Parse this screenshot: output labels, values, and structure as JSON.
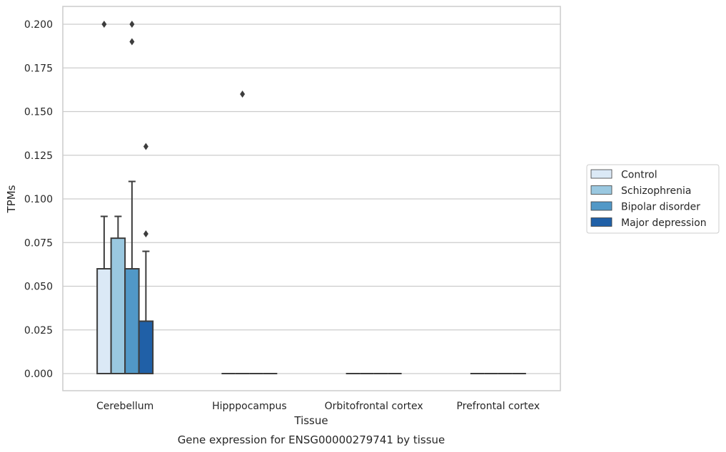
{
  "chart_data": {
    "type": "bar",
    "title": "Gene expression for ENSG00000279741 by tissue",
    "xlabel": "Tissue",
    "ylabel": "TPMs",
    "ylim": [
      -0.01,
      0.21
    ],
    "yticks": [
      0.0,
      0.025,
      0.05,
      0.075,
      0.1,
      0.125,
      0.15,
      0.175,
      0.2
    ],
    "ytick_labels": [
      "0.000",
      "0.025",
      "0.050",
      "0.075",
      "0.100",
      "0.125",
      "0.150",
      "0.175",
      "0.200"
    ],
    "grid": true,
    "legend_position": "right",
    "categories": [
      "Cerebellum",
      "Hipppocampus",
      "Orbitofrontal cortex",
      "Prefrontal cortex"
    ],
    "series": [
      {
        "name": "Control",
        "color": "#dbe9f6",
        "values": [
          0.06,
          0.0,
          0.0,
          0.0
        ],
        "whisker_high": [
          0.09,
          0.0,
          0.0,
          0.0
        ],
        "outliers": [
          [
            0.2
          ],
          [],
          [],
          []
        ]
      },
      {
        "name": "Schizophrenia",
        "color": "#9ac8e0",
        "values": [
          0.0775,
          0.0,
          0.0,
          0.0
        ],
        "whisker_high": [
          0.09,
          0.0,
          0.0,
          0.0
        ],
        "outliers": [
          [],
          [
            0.16
          ],
          [],
          []
        ]
      },
      {
        "name": "Bipolar disorder",
        "color": "#5198c7",
        "values": [
          0.06,
          0.0,
          0.0,
          0.0
        ],
        "whisker_high": [
          0.11,
          0.0,
          0.0,
          0.0
        ],
        "outliers": [
          [
            0.2,
            0.19
          ],
          [],
          [],
          []
        ]
      },
      {
        "name": "Major depression",
        "color": "#2060a7",
        "values": [
          0.03,
          0.0,
          0.0,
          0.0
        ],
        "whisker_high": [
          0.07,
          0.0,
          0.0,
          0.0
        ],
        "outliers": [
          [
            0.13,
            0.08
          ],
          [],
          [],
          []
        ]
      }
    ]
  }
}
